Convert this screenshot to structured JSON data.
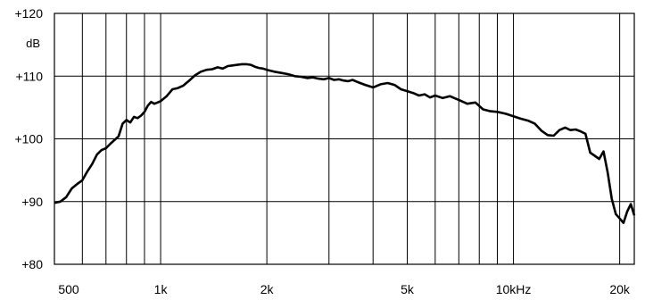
{
  "chart_data": {
    "type": "line",
    "title": "",
    "xlabel": "",
    "ylabel": "dB",
    "x_scale": "log",
    "xlim": [
      500,
      22000
    ],
    "ylim": [
      80,
      120
    ],
    "grid": true,
    "line_color": "#000000",
    "grid_color": "#000000",
    "y_ticks": [
      {
        "value": 80,
        "label": "+80"
      },
      {
        "value": 90,
        "label": "+90"
      },
      {
        "value": 100,
        "label": "+100"
      },
      {
        "value": 110,
        "label": "+110"
      },
      {
        "value": 120,
        "label": "+120"
      }
    ],
    "x_ticks": [
      {
        "value": 500,
        "label": "500"
      },
      {
        "value": 1000,
        "label": "1k"
      },
      {
        "value": 2000,
        "label": "2k"
      },
      {
        "value": 5000,
        "label": "5k"
      },
      {
        "value": 10000,
        "label": "10kHz"
      },
      {
        "value": 20000,
        "label": "20k"
      }
    ],
    "x_gridlines": [
      500,
      600,
      700,
      800,
      900,
      1000,
      2000,
      3000,
      4000,
      5000,
      6000,
      7000,
      8000,
      9000,
      10000,
      20000
    ],
    "series": [
      {
        "x": [
          500,
          520,
          540,
          560,
          580,
          600,
          620,
          640,
          660,
          680,
          700,
          720,
          740,
          760,
          780,
          800,
          820,
          840,
          860,
          880,
          900,
          920,
          940,
          960,
          980,
          1000,
          1040,
          1080,
          1120,
          1160,
          1200,
          1250,
          1300,
          1350,
          1400,
          1450,
          1500,
          1550,
          1600,
          1650,
          1700,
          1750,
          1800,
          1850,
          1900,
          1950,
          2000,
          2100,
          2200,
          2300,
          2400,
          2500,
          2600,
          2700,
          2800,
          2900,
          3000,
          3100,
          3200,
          3300,
          3400,
          3500,
          3600,
          3800,
          4000,
          4200,
          4400,
          4600,
          4800,
          5000,
          5200,
          5400,
          5600,
          5800,
          6000,
          6300,
          6600,
          7000,
          7400,
          7800,
          8200,
          8600,
          9000,
          9500,
          10000,
          10500,
          11000,
          11500,
          12000,
          12500,
          13000,
          13500,
          14000,
          14500,
          15000,
          15500,
          16000,
          16500,
          17000,
          17500,
          18000,
          18500,
          19000,
          19500,
          20000,
          20500,
          21000,
          21500,
          22000
        ],
        "y": [
          89.8,
          90.0,
          90.7,
          92.1,
          92.8,
          93.4,
          94.8,
          96.0,
          97.5,
          98.2,
          98.5,
          99.2,
          99.8,
          100.4,
          102.4,
          103.0,
          102.6,
          103.5,
          103.3,
          103.7,
          104.3,
          105.3,
          105.9,
          105.6,
          105.8,
          106.0,
          106.8,
          107.9,
          108.1,
          108.5,
          109.2,
          110.1,
          110.7,
          111.0,
          111.1,
          111.4,
          111.2,
          111.6,
          111.7,
          111.8,
          111.9,
          111.9,
          111.8,
          111.5,
          111.3,
          111.2,
          111.0,
          110.7,
          110.5,
          110.3,
          110.0,
          109.9,
          109.7,
          109.8,
          109.6,
          109.5,
          109.7,
          109.4,
          109.5,
          109.3,
          109.2,
          109.4,
          109.1,
          108.6,
          108.2,
          108.7,
          108.9,
          108.6,
          107.9,
          107.6,
          107.3,
          106.9,
          107.1,
          106.6,
          106.9,
          106.5,
          106.8,
          106.2,
          105.6,
          105.8,
          104.7,
          104.4,
          104.3,
          104.0,
          103.6,
          103.2,
          102.9,
          102.4,
          101.3,
          100.6,
          100.5,
          101.4,
          101.8,
          101.4,
          101.5,
          101.2,
          100.8,
          97.8,
          97.3,
          96.8,
          98.0,
          94.6,
          90.4,
          88.0,
          87.3,
          86.6,
          88.4,
          89.6,
          87.8
        ]
      }
    ]
  }
}
